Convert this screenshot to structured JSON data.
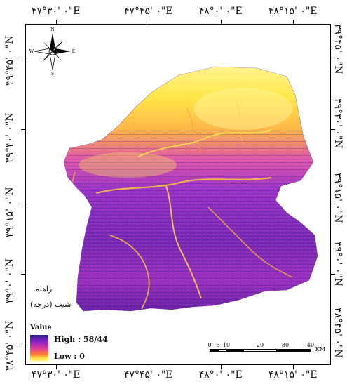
{
  "longitude_labels": [
    "۴۷°۳۰' ۰\"E",
    "۴۷°۴۵' ۰\"E",
    "۴۸°۰' ۰\"E",
    "۴۸°۱۵' ۰\"E"
  ],
  "latitude_labels": [
    "۳۹°۴۵' ۰\"N",
    "۳۹°۳۰' ۰\"N",
    "۳۹°۱۵' ۰\"N",
    "۳۹°۰' ۰\"N",
    "۳۸°۴۵' ۰\"N"
  ],
  "north_arrow": {
    "n": "N",
    "s": "S",
    "e": "E",
    "w": "W"
  },
  "legend": {
    "title": "راهنما",
    "layer": "شیب (درجه)",
    "value_label": "Value",
    "high": "High : 58/44",
    "low": "Low : 0",
    "ramp_colors": [
      "#2a1a8a",
      "#8a22c8",
      "#e03aa0",
      "#ff7a30",
      "#ffe44a",
      "#fffab0"
    ]
  },
  "scale_bar": {
    "ticks": [
      "0",
      "5",
      "10",
      "20",
      "30",
      "40"
    ],
    "unit": "KM"
  }
}
